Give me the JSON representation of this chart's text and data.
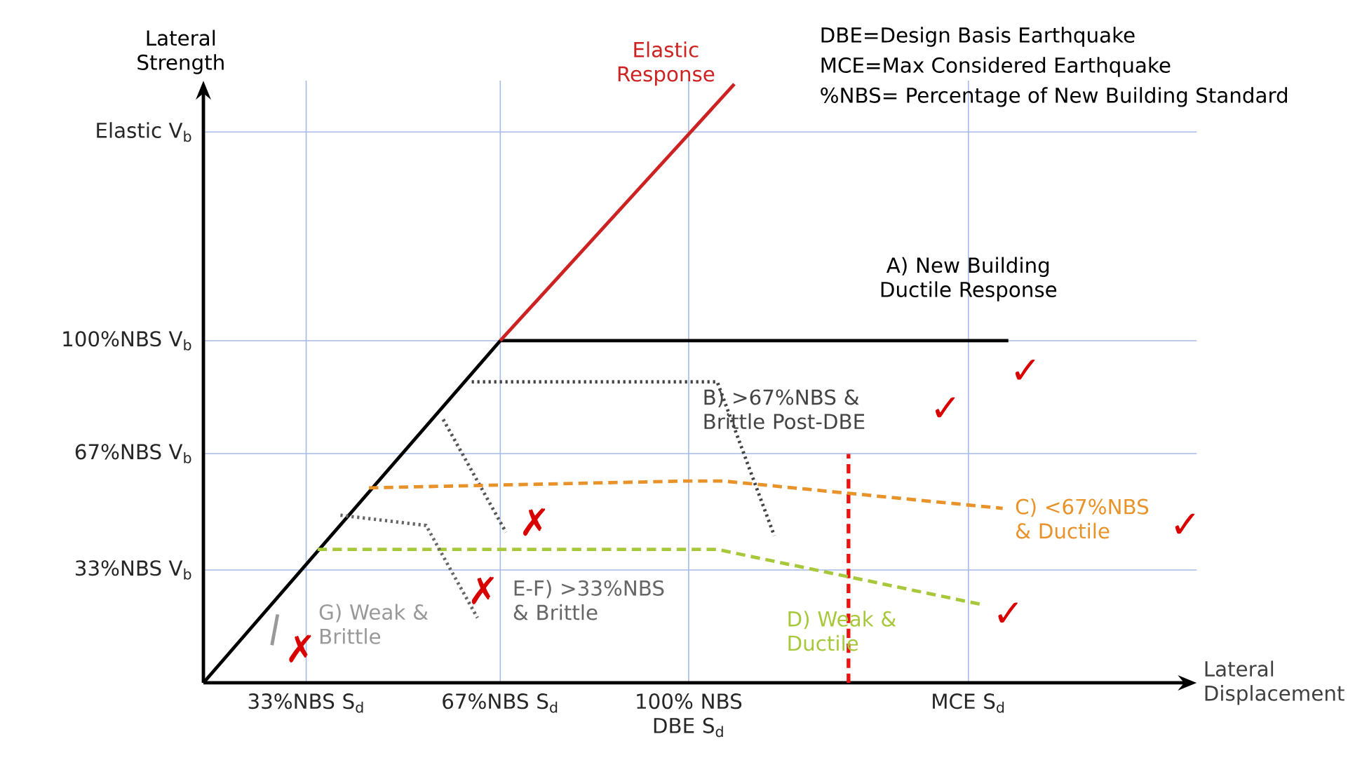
{
  "chart_data": {
    "type": "line",
    "xlabel": "Lateral Displacement",
    "ylabel": "Lateral Strength",
    "xlim": [
      15,
      189
    ],
    "ylim": [
      0,
      176
    ],
    "xticks": [
      {
        "value": 33,
        "label": "33%NBS S$_{d}$"
      },
      {
        "value": 67,
        "label": "67%NBS S$_{d}$"
      },
      {
        "value": 100,
        "label": "100% NBS DBE S$_{d}$"
      },
      {
        "value": 149,
        "label": "MCE S$_{d}$"
      }
    ],
    "yticks": [
      {
        "value": 33,
        "label": "33%NBS V$_{b}$"
      },
      {
        "value": 67,
        "label": "67%NBS V$_{b}$"
      },
      {
        "value": 100,
        "label": "100%NBS V$_{b}$"
      },
      {
        "value": 161,
        "label": "Elastic V$_{b}$"
      }
    ],
    "grid": true,
    "marker": "none",
    "series": [
      {
        "name": "A) New Building Ductile Response",
        "color": "#000000",
        "line_style": "solid",
        "x": [
          15,
          67,
          156
        ],
        "values": [
          0,
          100,
          100
        ]
      },
      {
        "name": "Elastic Response",
        "color": "#cc2222",
        "line_style": "solid",
        "x": [
          67,
          108
        ],
        "values": [
          100,
          175
        ]
      },
      {
        "name": "B) >67%NBS & Brittle Post-DBE",
        "color": "#444444",
        "line_style": "dotted",
        "x": [
          62,
          105,
          115
        ],
        "values": [
          88,
          88,
          43
        ]
      },
      {
        "color": "#555555",
        "line_style": "dotted",
        "x": [
          57,
          68
        ],
        "values": [
          77,
          44
        ]
      },
      {
        "name": "C) <67%NBS & Ductile",
        "color": "#e8922a",
        "line_style": "dashed",
        "x": [
          44,
          100,
          106,
          155
        ],
        "values": [
          57,
          59,
          59,
          51
        ]
      },
      {
        "name": "D) Weak & Ductile",
        "color": "#a8c83c",
        "line_style": "dashed",
        "x": [
          35,
          105,
          151
        ],
        "values": [
          39,
          39,
          23
        ]
      },
      {
        "name": "E-F) >33%NBS & Brittle",
        "color": "#666666",
        "line_style": "dotted",
        "x": [
          39,
          54,
          63
        ],
        "values": [
          49,
          46,
          19
        ]
      },
      {
        "name": "G) Weak & Brittle",
        "color": "#999999",
        "line_style": "solid",
        "x": [
          28,
          27
        ],
        "values": [
          20,
          11
        ]
      }
    ],
    "ref_lines": [
      {
        "axis": "x",
        "value": 128,
        "color": "#ee1111",
        "line_style": "dashed"
      }
    ],
    "annotations": [
      "DBE=Design Basis Earthquake",
      "MCE=Max Considered Earthquake",
      "%NBS= Percentage of New Building Standard",
      "✓",
      "✓",
      "✓",
      "✓",
      "✗",
      "✗",
      "✗"
    ]
  }
}
